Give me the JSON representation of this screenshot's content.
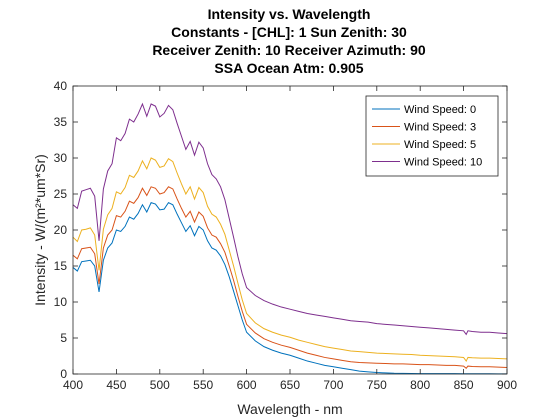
{
  "chart_data": {
    "type": "line",
    "title_lines": [
      "Intensity vs. Wavelength",
      "Constants - [CHL]: 1 Sun Zenith: 30",
      "Receiver Zenith: 10 Receiver Azimuth: 90",
      "SSA Ocean Atm: 0.905"
    ],
    "xlabel": "Wavelength - nm",
    "ylabel": "Intensity - W/(m²*um*Sr)",
    "xlim": [
      400,
      900
    ],
    "ylim": [
      0,
      40
    ],
    "xticks": [
      400,
      450,
      500,
      550,
      600,
      650,
      700,
      750,
      800,
      850,
      900
    ],
    "yticks": [
      0,
      5,
      10,
      15,
      20,
      25,
      30,
      35,
      40
    ],
    "legend_position": "top-right",
    "x": [
      400,
      405,
      410,
      415,
      420,
      425,
      430,
      435,
      440,
      445,
      450,
      455,
      460,
      465,
      470,
      475,
      480,
      485,
      490,
      495,
      500,
      505,
      510,
      515,
      520,
      525,
      530,
      535,
      540,
      545,
      550,
      555,
      560,
      565,
      570,
      575,
      580,
      585,
      590,
      595,
      600,
      610,
      620,
      630,
      640,
      650,
      660,
      670,
      680,
      690,
      700,
      710,
      720,
      730,
      740,
      750,
      760,
      770,
      780,
      790,
      800,
      810,
      820,
      830,
      840,
      850,
      853,
      855,
      860,
      870,
      880,
      890,
      900
    ],
    "series": [
      {
        "name": "Wind Speed: 0",
        "color": "#0072BD",
        "values": [
          14.8,
          14.3,
          15.6,
          15.7,
          15.8,
          15.0,
          11.4,
          15.8,
          17.5,
          18.2,
          20.0,
          19.8,
          20.5,
          21.8,
          21.5,
          22.3,
          23.5,
          22.5,
          23.8,
          23.6,
          22.8,
          22.9,
          23.8,
          23.5,
          22.2,
          21.0,
          19.8,
          20.6,
          19.2,
          20.5,
          20.0,
          18.5,
          17.5,
          17.2,
          16.4,
          15.2,
          13.5,
          11.5,
          9.5,
          7.5,
          5.8,
          4.6,
          3.8,
          3.3,
          2.9,
          2.6,
          2.2,
          1.8,
          1.5,
          1.2,
          1.0,
          0.8,
          0.6,
          0.4,
          0.3,
          0.2,
          0.15,
          0.1,
          0.08,
          0.07,
          0.06,
          0.05,
          0.05,
          0.05,
          0.05,
          0.04,
          0.03,
          0.03,
          0.03,
          0.03,
          0.03,
          0.02,
          0.02
        ]
      },
      {
        "name": "Wind Speed: 3",
        "color": "#D95319",
        "values": [
          16.5,
          16.0,
          17.4,
          17.5,
          17.6,
          16.7,
          12.5,
          17.5,
          19.3,
          20.0,
          22.0,
          21.8,
          22.6,
          24.0,
          23.7,
          24.5,
          25.8,
          24.8,
          26.0,
          25.8,
          25.0,
          25.2,
          26.0,
          25.7,
          24.3,
          23.0,
          21.8,
          22.6,
          21.1,
          22.5,
          21.9,
          20.3,
          19.3,
          19.0,
          18.1,
          16.9,
          15.0,
          13.0,
          10.8,
          8.7,
          6.9,
          5.7,
          4.9,
          4.4,
          4.0,
          3.7,
          3.3,
          2.9,
          2.6,
          2.3,
          2.1,
          1.9,
          1.7,
          1.6,
          1.55,
          1.5,
          1.45,
          1.4,
          1.4,
          1.35,
          1.3,
          1.3,
          1.25,
          1.2,
          1.2,
          1.1,
          0.8,
          1.1,
          1.05,
          1.0,
          1.0,
          0.95,
          0.9
        ]
      },
      {
        "name": "Wind Speed: 5",
        "color": "#EDB120",
        "values": [
          19.0,
          18.4,
          20.0,
          20.1,
          20.3,
          19.3,
          14.4,
          20.1,
          22.1,
          23.0,
          25.3,
          25.0,
          25.9,
          27.6,
          27.3,
          28.2,
          29.6,
          28.5,
          30.0,
          29.7,
          28.7,
          28.9,
          29.9,
          29.5,
          27.9,
          26.4,
          25.0,
          26.0,
          24.3,
          25.9,
          25.2,
          23.3,
          22.2,
          21.8,
          20.8,
          19.4,
          17.2,
          15.0,
          12.6,
          10.3,
          8.4,
          7.1,
          6.3,
          5.8,
          5.4,
          5.1,
          4.7,
          4.4,
          4.1,
          3.8,
          3.6,
          3.4,
          3.2,
          3.1,
          3.0,
          2.9,
          2.85,
          2.8,
          2.75,
          2.7,
          2.6,
          2.55,
          2.5,
          2.45,
          2.4,
          2.3,
          1.8,
          2.3,
          2.25,
          2.2,
          2.2,
          2.15,
          2.1
        ]
      },
      {
        "name": "Wind Speed: 10",
        "color": "#7E2F8E",
        "values": [
          23.5,
          23.0,
          25.4,
          25.6,
          25.8,
          24.7,
          18.5,
          25.7,
          28.2,
          29.2,
          32.8,
          32.4,
          33.4,
          35.4,
          35.0,
          36.1,
          37.5,
          35.8,
          37.5,
          37.2,
          35.7,
          36.2,
          37.3,
          36.7,
          34.8,
          33.0,
          31.2,
          32.3,
          30.4,
          32.2,
          31.4,
          29.2,
          27.7,
          27.1,
          26.0,
          24.2,
          21.6,
          19.0,
          16.3,
          13.9,
          12.0,
          10.9,
          10.2,
          9.7,
          9.3,
          9.0,
          8.7,
          8.4,
          8.2,
          8.0,
          7.8,
          7.6,
          7.4,
          7.3,
          7.2,
          7.0,
          6.9,
          6.8,
          6.7,
          6.6,
          6.5,
          6.4,
          6.3,
          6.2,
          6.1,
          6.0,
          5.5,
          6.0,
          5.9,
          5.8,
          5.8,
          5.7,
          5.6
        ]
      }
    ]
  }
}
